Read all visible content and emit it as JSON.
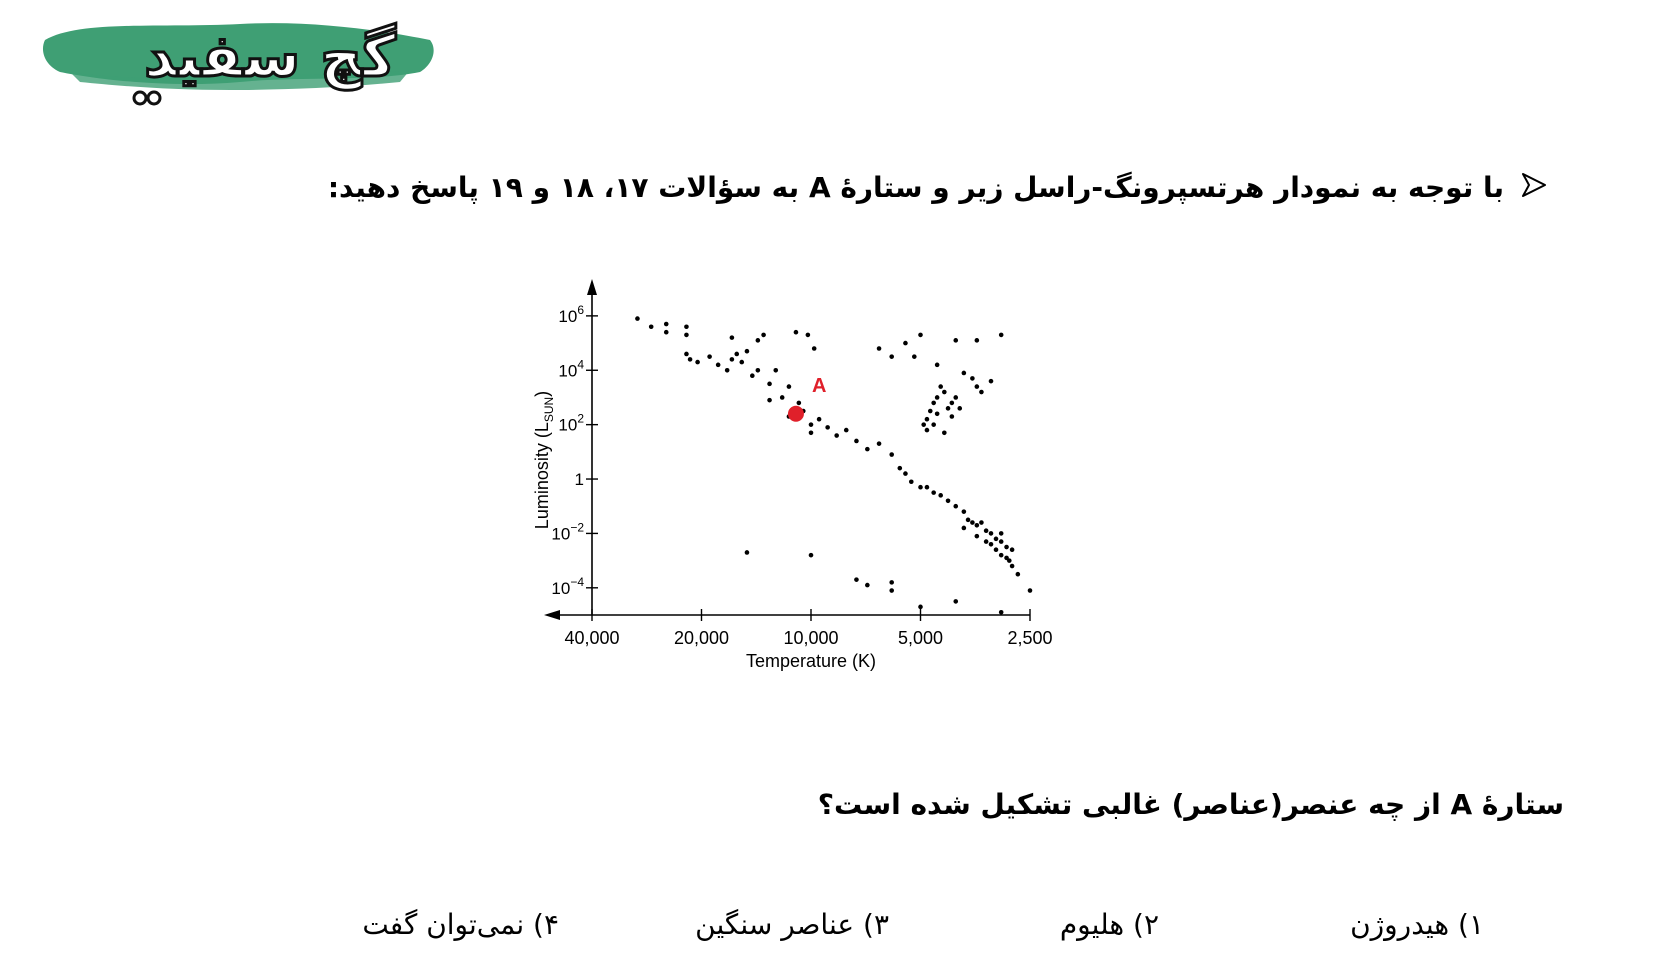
{
  "logo": {
    "text": "گچ سفید",
    "brush_color": "#3f9f74"
  },
  "intro": {
    "text": "با توجه به نمودار هرتسپرونگ-راسل زیر و ستارهٔ A به سؤالات ۱۷، ۱۸ و ۱۹ پاسخ دهید:"
  },
  "question": {
    "text": "ستارهٔ A از چه عنصر(عناصر) غالبی تشکیل شده است؟"
  },
  "options": [
    "۱) هیدروژن",
    "۲) هلیوم",
    "۳) عناصر سنگین",
    "۴) نمی‌توان گفت"
  ],
  "icons": {
    "bullet": "arrow-right-outline-icon"
  },
  "chart_data": {
    "type": "scatter",
    "title": "",
    "xlabel": "Temperature (K)",
    "ylabel": "Luminosity (L_sun)",
    "x_axis": "temperature, log scale, decreasing to the right",
    "y_axis": "luminosity, log scale",
    "xlim": [
      40000,
      2500
    ],
    "ylim_exp": [
      -5,
      6.4
    ],
    "x_ticks": [
      {
        "value": 40000,
        "label": "40,000"
      },
      {
        "value": 20000,
        "label": "20,000"
      },
      {
        "value": 10000,
        "label": "10,000"
      },
      {
        "value": 5000,
        "label": "5,000"
      },
      {
        "value": 2500,
        "label": "2,500"
      }
    ],
    "y_ticks": [
      {
        "exp": 6,
        "base": "10",
        "sup": "6"
      },
      {
        "exp": 4,
        "base": "10",
        "sup": "4"
      },
      {
        "exp": 2,
        "base": "10",
        "sup": "2"
      },
      {
        "exp": 0,
        "base": "1",
        "sup": ""
      },
      {
        "exp": -2,
        "base": "10",
        "sup": "−2"
      },
      {
        "exp": -4,
        "base": "10",
        "sup": "−4"
      }
    ],
    "grid": false,
    "highlight": {
      "label": "A",
      "temperature": 11000,
      "log_luminosity": 2.4,
      "color": "#e0202a"
    },
    "points": [
      [
        30000,
        5.9
      ],
      [
        27500,
        5.6
      ],
      [
        25000,
        5.7
      ],
      [
        25000,
        5.4
      ],
      [
        22000,
        5.6
      ],
      [
        22000,
        5.3
      ],
      [
        22000,
        4.6
      ],
      [
        21500,
        4.4
      ],
      [
        20500,
        4.3
      ],
      [
        19000,
        4.5
      ],
      [
        18000,
        4.2
      ],
      [
        17000,
        4.0
      ],
      [
        16500,
        4.4
      ],
      [
        16500,
        5.2
      ],
      [
        16000,
        4.6
      ],
      [
        15500,
        4.3
      ],
      [
        15000,
        4.7
      ],
      [
        14500,
        3.8
      ],
      [
        14000,
        4.0
      ],
      [
        14000,
        5.1
      ],
      [
        13500,
        5.3
      ],
      [
        13000,
        3.5
      ],
      [
        13000,
        2.9
      ],
      [
        12500,
        4.0
      ],
      [
        12000,
        3.0
      ],
      [
        11500,
        3.4
      ],
      [
        11500,
        2.3
      ],
      [
        11000,
        2.6
      ],
      [
        10800,
        2.8
      ],
      [
        10500,
        2.5
      ],
      [
        10000,
        2.0
      ],
      [
        10000,
        1.7
      ],
      [
        9500,
        2.2
      ],
      [
        9000,
        1.9
      ],
      [
        8500,
        1.6
      ],
      [
        8000,
        1.8
      ],
      [
        7500,
        1.4
      ],
      [
        7000,
        1.1
      ],
      [
        10200,
        5.3
      ],
      [
        11000,
        5.4
      ],
      [
        9800,
        4.8
      ],
      [
        6500,
        1.3
      ],
      [
        6000,
        0.9
      ],
      [
        5700,
        0.4
      ],
      [
        5500,
        0.2
      ],
      [
        5300,
        -0.1
      ],
      [
        5000,
        -0.3
      ],
      [
        4800,
        -0.3
      ],
      [
        4600,
        -0.5
      ],
      [
        4400,
        -0.6
      ],
      [
        4200,
        -0.8
      ],
      [
        4000,
        -1.0
      ],
      [
        3800,
        -1.2
      ],
      [
        3700,
        -1.5
      ],
      [
        3600,
        -1.6
      ],
      [
        3500,
        -1.7
      ],
      [
        3400,
        -1.6
      ],
      [
        3300,
        -1.9
      ],
      [
        3200,
        -2.0
      ],
      [
        3100,
        -2.2
      ],
      [
        3000,
        -2.3
      ],
      [
        2900,
        -2.5
      ],
      [
        2800,
        -2.6
      ],
      [
        3500,
        -2.1
      ],
      [
        3300,
        -2.3
      ],
      [
        3100,
        -2.6
      ],
      [
        3000,
        -2.8
      ],
      [
        2900,
        -2.9
      ],
      [
        2800,
        -3.2
      ],
      [
        2700,
        -3.5
      ],
      [
        3200,
        -2.4
      ],
      [
        3800,
        -1.8
      ],
      [
        3000,
        -2.0
      ],
      [
        2850,
        -3.0
      ],
      [
        4900,
        2.0
      ],
      [
        4800,
        2.2
      ],
      [
        4700,
        2.5
      ],
      [
        4600,
        2.8
      ],
      [
        4500,
        3.0
      ],
      [
        4400,
        3.4
      ],
      [
        4300,
        3.2
      ],
      [
        4200,
        2.6
      ],
      [
        4100,
        2.8
      ],
      [
        4000,
        3.0
      ],
      [
        4100,
        2.3
      ],
      [
        4500,
        2.4
      ],
      [
        4600,
        2.0
      ],
      [
        4800,
        1.8
      ],
      [
        3800,
        3.9
      ],
      [
        3600,
        3.7
      ],
      [
        3500,
        3.4
      ],
      [
        3400,
        3.2
      ],
      [
        3200,
        3.6
      ],
      [
        3900,
        2.6
      ],
      [
        4300,
        1.7
      ],
      [
        6500,
        4.8
      ],
      [
        6000,
        4.5
      ],
      [
        5500,
        5.0
      ],
      [
        5200,
        4.5
      ],
      [
        4500,
        4.2
      ],
      [
        4000,
        5.1
      ],
      [
        3500,
        5.1
      ],
      [
        3000,
        5.3
      ],
      [
        5000,
        5.3
      ],
      [
        15000,
        -2.7
      ],
      [
        10000,
        -2.8
      ],
      [
        7500,
        -3.7
      ],
      [
        7000,
        -3.9
      ],
      [
        6000,
        -3.8
      ],
      [
        6000,
        -4.1
      ],
      [
        5000,
        -4.7
      ],
      [
        4000,
        -4.5
      ],
      [
        3000,
        -4.9
      ],
      [
        2500,
        -4.1
      ]
    ]
  }
}
